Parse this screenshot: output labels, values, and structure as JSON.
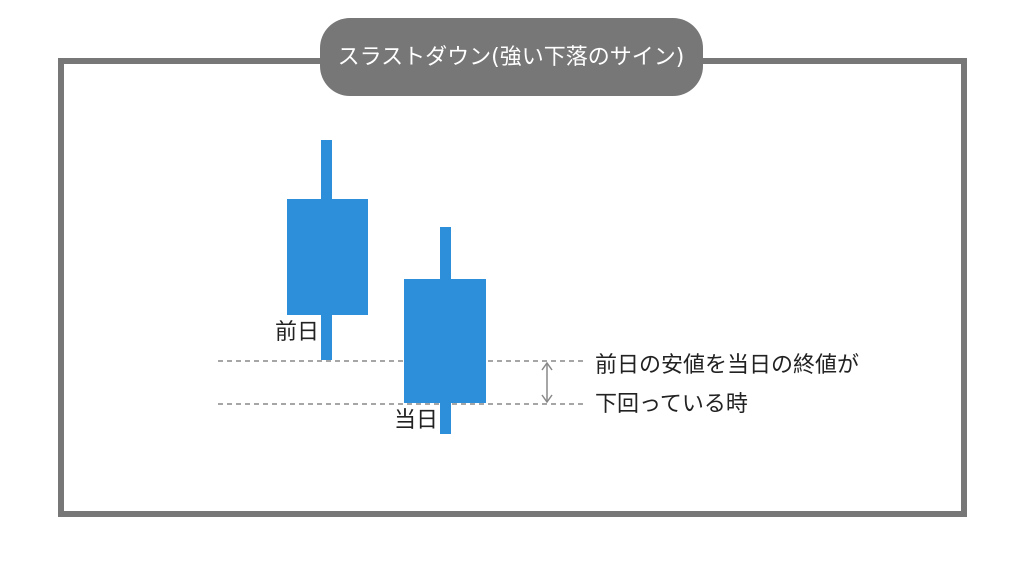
{
  "header": {
    "title": "スラストダウン(強い下落のサイン)"
  },
  "candles": [
    {
      "label": "前日"
    },
    {
      "label": "当日"
    }
  ],
  "annotation": {
    "lines": [
      "前日の安値を当日の終値が",
      "下回っている時"
    ]
  }
}
